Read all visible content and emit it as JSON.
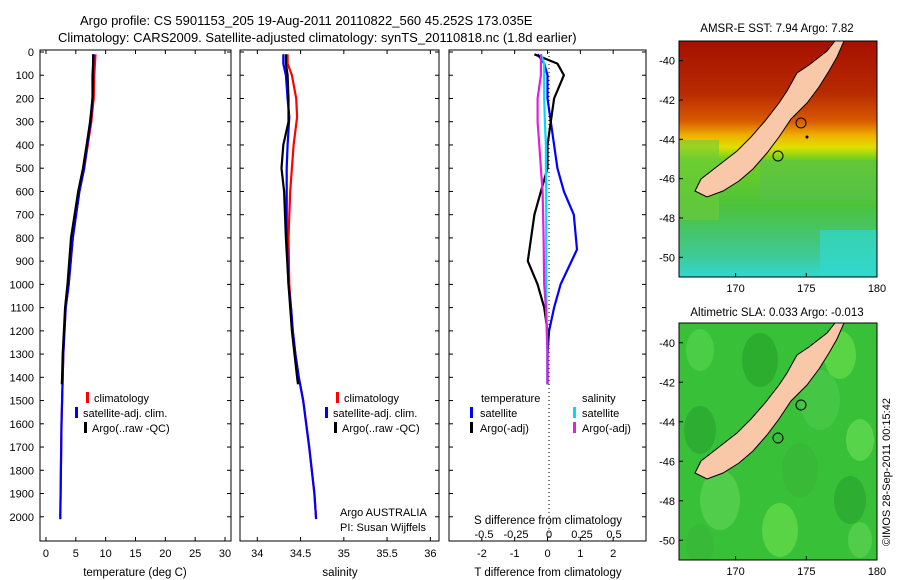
{
  "header": {
    "line1": "Argo profile: CS 5901153_205 19-Aug-2011 20110822_560 45.252S 173.035E",
    "line2": "Climatology: CARS2009. Satellite-adjusted climatology: synTS_20110818.nc (1.8d earlier)"
  },
  "credit": "©IMOS 28-Sep-2011 00:15:42",
  "colors": {
    "climatology": "#ff0000",
    "satellite": "#0000ff",
    "argo": "#000000",
    "satellite_s": "#00d8ff",
    "argo_s": "#e020e0",
    "land": "#f8c8a8"
  },
  "chart_data": [
    {
      "type": "line",
      "id": "temperature",
      "xlabel": "temperature (deg C)",
      "xlim": [
        -1,
        31
      ],
      "xticks": [
        0,
        5,
        10,
        15,
        20,
        25,
        30
      ],
      "ylim": [
        2100,
        0
      ],
      "yticks": [
        0,
        100,
        200,
        300,
        400,
        500,
        600,
        700,
        800,
        900,
        1000,
        1100,
        1200,
        1300,
        1400,
        1500,
        1600,
        1700,
        1800,
        1900,
        2000
      ],
      "legend": [
        "climatology",
        "satellite-adj. clim.",
        "Argo(..raw -QC)"
      ],
      "series": [
        {
          "name": "climatology",
          "color": "#ff0000",
          "x": [
            8.3,
            8.2,
            8.1,
            8.0,
            7.6,
            7.0,
            6.4,
            5.6,
            4.5,
            3.8,
            3.3,
            3.1,
            2.9,
            2.8,
            2.7,
            2.6,
            2.5,
            2.4,
            2.4
          ],
          "y": [
            10,
            50,
            100,
            200,
            300,
            400,
            500,
            600,
            800,
            1000,
            1100,
            1200,
            1300,
            1400,
            1500,
            1600,
            1800,
            2000,
            2010
          ]
        },
        {
          "name": "satellite-adj. clim.",
          "color": "#0000ff",
          "x": [
            8.0,
            7.9,
            7.9,
            7.8,
            7.5,
            6.9,
            6.4,
            5.6,
            4.5,
            3.8,
            3.3,
            3.1,
            2.9,
            2.8,
            2.7,
            2.6,
            2.5,
            2.4,
            2.4
          ],
          "y": [
            10,
            50,
            100,
            200,
            300,
            400,
            500,
            600,
            800,
            1000,
            1100,
            1200,
            1300,
            1400,
            1500,
            1600,
            1800,
            2000,
            2010
          ]
        },
        {
          "name": "Argo(..raw -QC)",
          "color": "#000000",
          "x": [
            7.9,
            7.9,
            7.8,
            7.8,
            7.4,
            6.8,
            6.2,
            5.4,
            4.2,
            3.6,
            3.2,
            3.0,
            2.8,
            2.7,
            2.65
          ],
          "y": [
            10,
            50,
            100,
            200,
            300,
            400,
            500,
            600,
            800,
            1000,
            1100,
            1200,
            1300,
            1400,
            1430
          ]
        }
      ]
    },
    {
      "type": "line",
      "id": "salinity",
      "xlabel": "salinity",
      "xlim": [
        33.8,
        36.1
      ],
      "xticks": [
        34,
        34.5,
        35,
        35.5,
        36
      ],
      "ylim": [
        2100,
        0
      ],
      "legend": [
        "climatology",
        "satellite-adj. clim.",
        "Argo(..raw -QC)"
      ],
      "annotation": [
        "Argo AUSTRALIA",
        "PI: Susan Wijffels"
      ],
      "series": [
        {
          "name": "climatology",
          "color": "#ff0000",
          "x": [
            34.35,
            34.35,
            34.4,
            34.45,
            34.46,
            34.42,
            34.4,
            34.38,
            34.36,
            34.37,
            34.39,
            34.41,
            34.44,
            34.48,
            34.53,
            34.6,
            34.66,
            34.68
          ],
          "y": [
            10,
            50,
            100,
            200,
            280,
            400,
            500,
            600,
            800,
            1000,
            1100,
            1200,
            1300,
            1400,
            1500,
            1700,
            1900,
            2010
          ]
        },
        {
          "name": "satellite-adj. clim.",
          "color": "#0000ff",
          "x": [
            34.3,
            34.3,
            34.33,
            34.35,
            34.37,
            34.35,
            34.34,
            34.34,
            34.34,
            34.36,
            34.39,
            34.41,
            34.44,
            34.48,
            34.53,
            34.6,
            34.66,
            34.68
          ],
          "y": [
            10,
            50,
            100,
            200,
            280,
            400,
            500,
            600,
            800,
            1000,
            1100,
            1200,
            1300,
            1400,
            1500,
            1700,
            1900,
            2010
          ]
        },
        {
          "name": "Argo(..raw -QC)",
          "color": "#000000",
          "x": [
            34.33,
            34.33,
            34.35,
            34.36,
            34.36,
            34.3,
            34.28,
            34.31,
            34.33,
            34.36,
            34.38,
            34.4,
            34.43,
            34.46,
            34.47
          ],
          "y": [
            10,
            50,
            100,
            200,
            300,
            400,
            500,
            600,
            800,
            1000,
            1100,
            1200,
            1300,
            1400,
            1430
          ]
        }
      ]
    },
    {
      "type": "line",
      "id": "difference",
      "xlabel": "T difference from climatology",
      "xlabel_top": "S difference from climatology",
      "xlim": [
        -3,
        3
      ],
      "xticks": [
        -2,
        -1,
        0,
        1,
        2
      ],
      "sticks": [
        "-0.5",
        "-0.25",
        "0",
        "0.25",
        "0.5"
      ],
      "ylim": [
        2100,
        0
      ],
      "legend_t_title": "temperature",
      "legend_s_title": "salinity",
      "legend": [
        "satellite",
        "Argo(-adj)",
        "satellite",
        "Argo(-adj)"
      ],
      "series": [
        {
          "name": "satellite",
          "color": "#0000ff",
          "x": [
            -0.3,
            -0.1,
            0.0,
            0.0,
            0.1,
            0.2,
            0.3,
            0.5,
            0.8,
            0.9,
            0.4,
            0.2,
            0.05,
            0.0,
            0.0
          ],
          "y": [
            10,
            50,
            100,
            200,
            300,
            400,
            500,
            600,
            700,
            850,
            1000,
            1100,
            1200,
            1300,
            1430
          ]
        },
        {
          "name": "Argo(-adj)",
          "color": "#000000",
          "x": [
            -0.4,
            0.3,
            0.5,
            0.2,
            0.1,
            0.0,
            0.0,
            -0.2,
            -0.4,
            -0.6,
            -0.3,
            -0.1,
            0.0,
            0.0
          ],
          "y": [
            10,
            50,
            100,
            200,
            300,
            400,
            500,
            600,
            700,
            900,
            1000,
            1100,
            1200,
            1430
          ]
        },
        {
          "name": "satellite",
          "color": "#00d8ff",
          "x": [
            -0.2,
            -0.1,
            -0.1,
            -0.1,
            -0.08,
            -0.05,
            -0.05,
            -0.04,
            -0.04,
            -0.04,
            -0.03,
            -0.02,
            0.0,
            0.0
          ],
          "y": [
            10,
            50,
            100,
            200,
            300,
            400,
            500,
            600,
            800,
            1000,
            1100,
            1200,
            1300,
            1430
          ]
        },
        {
          "name": "Argo(-adj)",
          "color": "#e020e0",
          "x": [
            -0.2,
            -0.2,
            -0.2,
            -0.3,
            -0.3,
            -0.25,
            -0.2,
            -0.15,
            -0.12,
            -0.1,
            -0.05,
            -0.02,
            0.0,
            0.0
          ],
          "y": [
            10,
            50,
            100,
            200,
            300,
            400,
            500,
            600,
            800,
            1000,
            1100,
            1200,
            1300,
            1430
          ]
        }
      ]
    },
    {
      "type": "heatmap",
      "id": "sst_map",
      "title": "AMSR-E SST: 7.94 Argo: 7.82",
      "xlim": [
        166,
        180
      ],
      "ylim": [
        -51,
        -39
      ],
      "xticks": [
        170,
        175,
        180
      ],
      "yticks": [
        -40,
        -42,
        -44,
        -46,
        -48,
        -50
      ]
    },
    {
      "type": "heatmap",
      "id": "sla_map",
      "title": "Altimetric SLA: 0.033 Argo: -0.013",
      "xlim": [
        166,
        180
      ],
      "ylim": [
        -51,
        -39
      ],
      "xticks": [
        170,
        175,
        180
      ],
      "yticks": [
        -40,
        -42,
        -44,
        -46,
        -48,
        -50
      ]
    }
  ]
}
